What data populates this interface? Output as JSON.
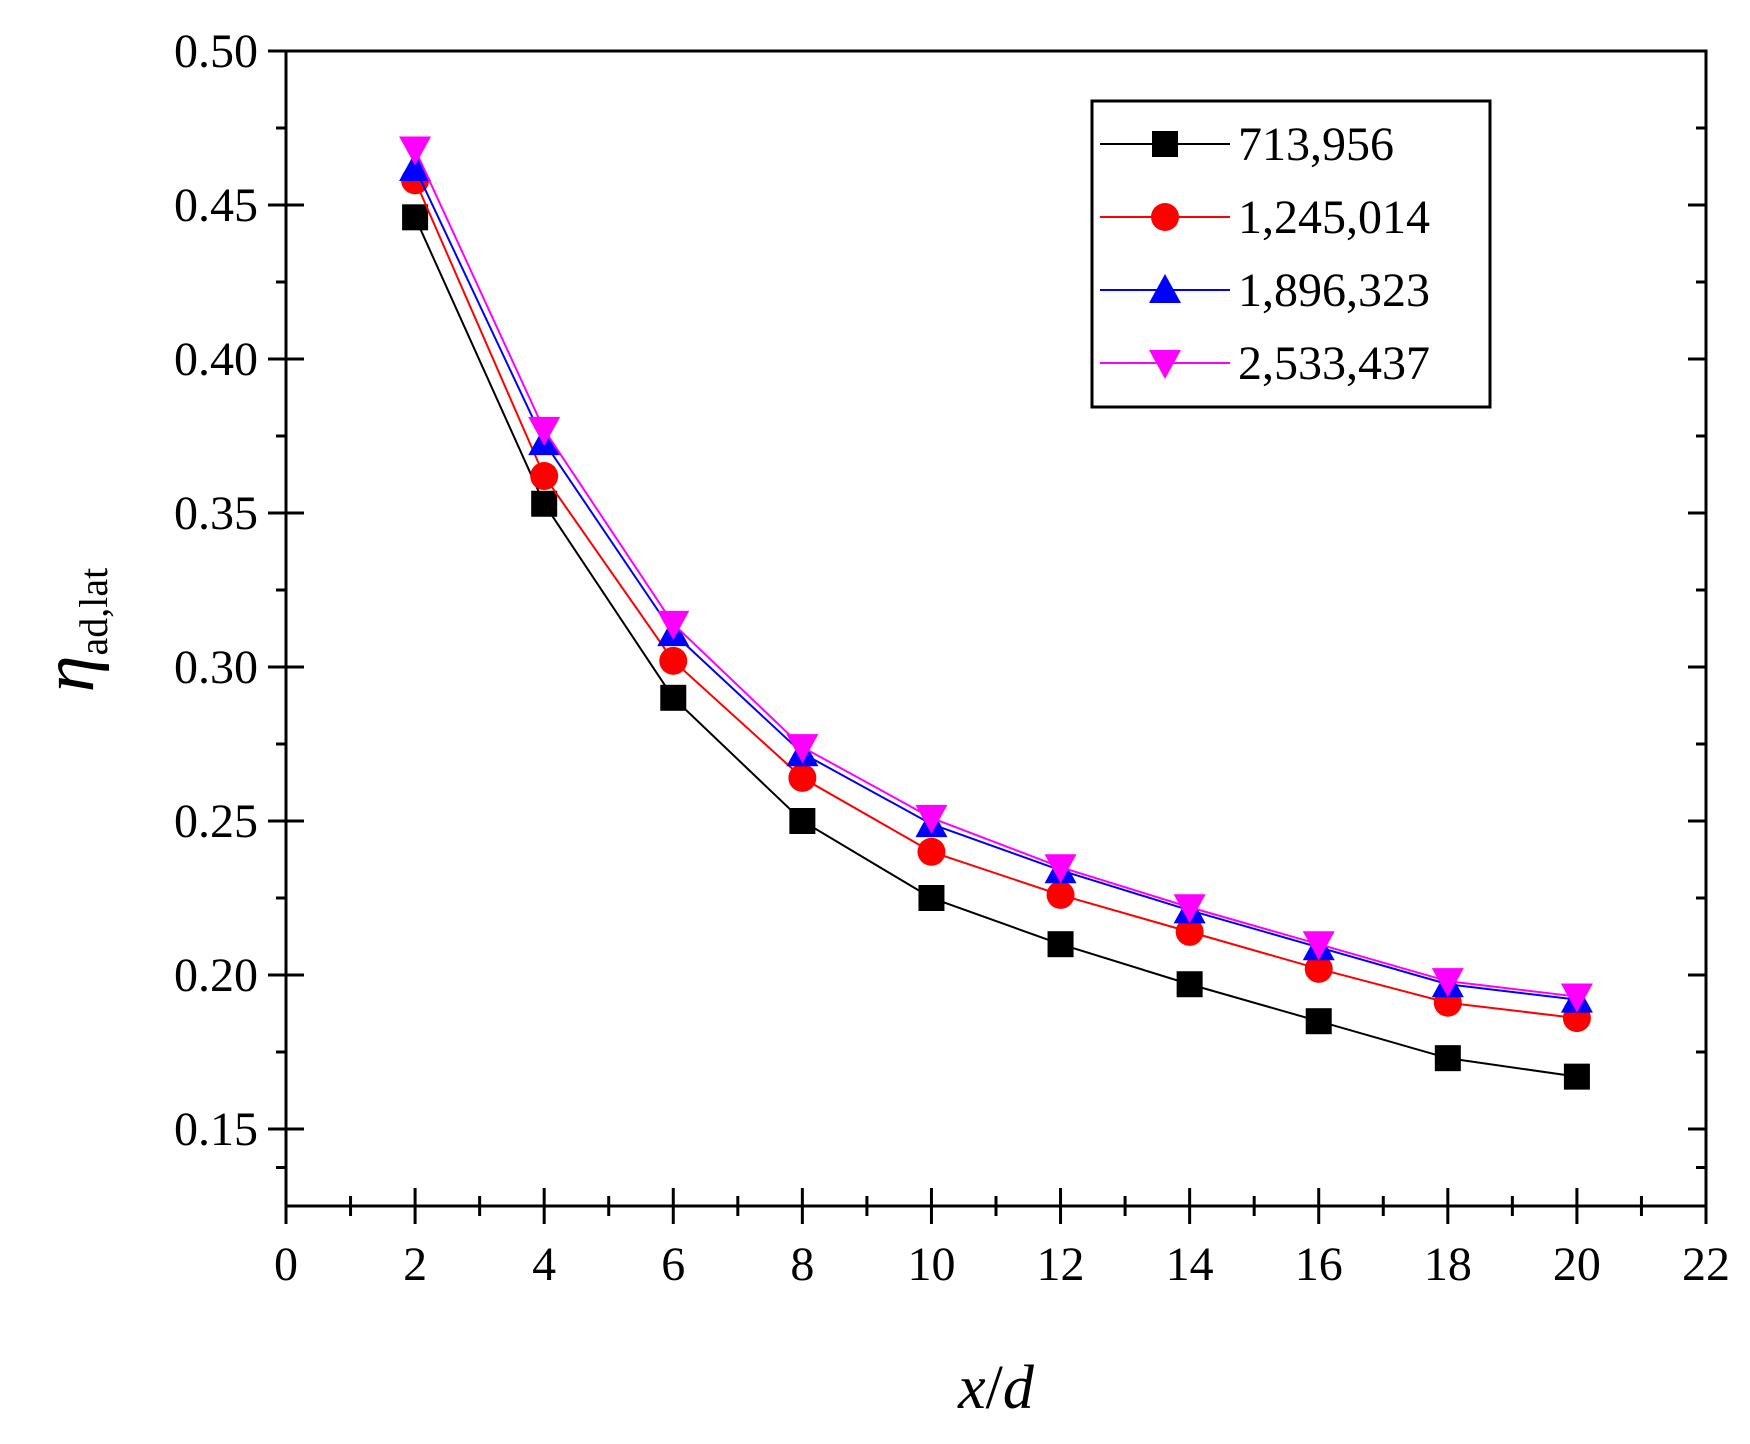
{
  "chart_data": {
    "type": "line",
    "x": [
      2,
      4,
      6,
      8,
      10,
      12,
      14,
      16,
      18,
      20
    ],
    "xlim": [
      0,
      22
    ],
    "ylim": [
      0.125,
      0.5
    ],
    "x_ticks": [
      0,
      2,
      4,
      6,
      8,
      10,
      12,
      14,
      16,
      18,
      20,
      22
    ],
    "x_tick_labels": [
      "0",
      "2",
      "4",
      "6",
      "8",
      "10",
      "12",
      "14",
      "16",
      "18",
      "20",
      "22"
    ],
    "y_ticks": [
      0.15,
      0.2,
      0.25,
      0.3,
      0.35,
      0.4,
      0.45,
      0.5
    ],
    "y_tick_labels": [
      "0.15",
      "0.20",
      "0.25",
      "0.30",
      "0.35",
      "0.40",
      "0.45",
      "0.50"
    ],
    "xlabel": {
      "main": "x",
      "slash": "/",
      "sub": "d"
    },
    "ylabel": {
      "main": "η",
      "sub": "ad,lat"
    },
    "legend_position": "top-right",
    "grid": false,
    "series": [
      {
        "name": "713,956",
        "color": "#000000",
        "marker": "square",
        "values": [
          0.446,
          0.353,
          0.29,
          0.25,
          0.225,
          0.21,
          0.197,
          0.185,
          0.173,
          0.167
        ]
      },
      {
        "name": "1,245,014",
        "color": "#ff0000",
        "marker": "circle",
        "values": [
          0.458,
          0.362,
          0.302,
          0.264,
          0.24,
          0.226,
          0.214,
          0.202,
          0.191,
          0.186
        ]
      },
      {
        "name": "1,896,323",
        "color": "#0000ff",
        "marker": "triangle-up",
        "values": [
          0.462,
          0.373,
          0.311,
          0.272,
          0.249,
          0.234,
          0.221,
          0.209,
          0.197,
          0.192
        ]
      },
      {
        "name": "2,533,437",
        "color": "#ff00ff",
        "marker": "triangle-down",
        "values": [
          0.468,
          0.377,
          0.314,
          0.274,
          0.251,
          0.235,
          0.222,
          0.21,
          0.198,
          0.193
        ]
      }
    ]
  }
}
